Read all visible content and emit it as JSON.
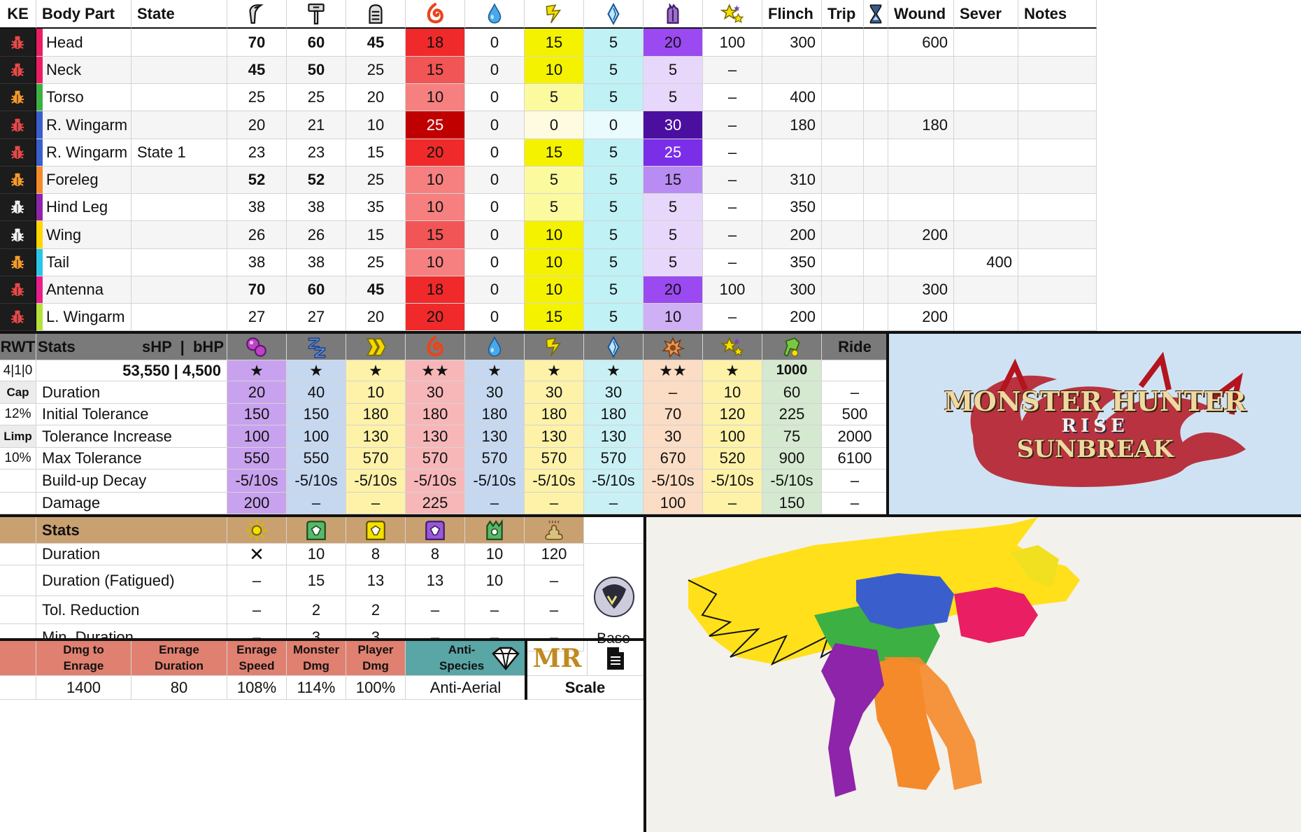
{
  "colors": {
    "ke_bg": "#1c1c1c",
    "stats_header": "#7a7a7a",
    "status_header": "#c9a070",
    "enrage_header": "#e08070",
    "anti_header": "#5aa5a5",
    "logo_bg": "#cfe2f3"
  },
  "hitzone": {
    "headers": {
      "ke": "KE",
      "body_part": "Body Part",
      "state": "State",
      "flinch": "Flinch",
      "trip": "Trip",
      "wound": "Wound",
      "sever": "Sever",
      "notes": "Notes"
    },
    "icons": [
      "sever-icon",
      "blunt-icon",
      "shot-icon",
      "fire-icon",
      "water-icon",
      "thunder-icon",
      "ice-icon",
      "dragon-icon",
      "stun-icon",
      "timer-icon"
    ],
    "rows": [
      {
        "bug": "red",
        "stripe": "#e91e63",
        "part": "Head",
        "state": "",
        "sev": "70",
        "blunt": "60",
        "shot": "45",
        "fire": "18",
        "water": "0",
        "thunder": "15",
        "ice": "5",
        "dragon": "20",
        "stun": "100",
        "flinch": "300",
        "wound": "600",
        "sever_v": "",
        "bs": 1,
        "bb": 1,
        "bsh": 1
      },
      {
        "bug": "red",
        "stripe": "#e91e63",
        "part": "Neck",
        "state": "",
        "sev": "45",
        "blunt": "50",
        "shot": "25",
        "fire": "15",
        "water": "0",
        "thunder": "10",
        "ice": "5",
        "dragon": "5",
        "stun": "–",
        "flinch": "",
        "wound": "",
        "sever_v": "",
        "bs": 1,
        "bb": 1,
        "bsh": 0
      },
      {
        "bug": "orange",
        "stripe": "#3cb043",
        "part": "Torso",
        "state": "",
        "sev": "25",
        "blunt": "25",
        "shot": "20",
        "fire": "10",
        "water": "0",
        "thunder": "5",
        "ice": "5",
        "dragon": "5",
        "stun": "–",
        "flinch": "400",
        "wound": "",
        "sever_v": "",
        "bs": 0,
        "bb": 0,
        "bsh": 0
      },
      {
        "bug": "red",
        "stripe": "#3a5fcd",
        "part": "R. Wingarm",
        "state": "",
        "sev": "20",
        "blunt": "21",
        "shot": "10",
        "fire": "25",
        "water": "0",
        "thunder": "0",
        "ice": "0",
        "dragon": "30",
        "stun": "–",
        "flinch": "180",
        "wound": "180",
        "sever_v": "",
        "bs": 0,
        "bb": 0,
        "bsh": 0
      },
      {
        "bug": "red",
        "stripe": "#3a5fcd",
        "part": "R. Wingarm",
        "state": "State 1",
        "sev": "23",
        "blunt": "23",
        "shot": "15",
        "fire": "20",
        "water": "0",
        "thunder": "15",
        "ice": "5",
        "dragon": "25",
        "stun": "–",
        "flinch": "",
        "wound": "",
        "sever_v": "",
        "bs": 0,
        "bb": 0,
        "bsh": 0
      },
      {
        "bug": "orange",
        "stripe": "#f58a2a",
        "part": "Foreleg",
        "state": "",
        "sev": "52",
        "blunt": "52",
        "shot": "25",
        "fire": "10",
        "water": "0",
        "thunder": "5",
        "ice": "5",
        "dragon": "15",
        "stun": "–",
        "flinch": "310",
        "wound": "",
        "sever_v": "",
        "bs": 1,
        "bb": 1,
        "bsh": 0
      },
      {
        "bug": "white",
        "stripe": "#8e24aa",
        "part": "Hind Leg",
        "state": "",
        "sev": "38",
        "blunt": "38",
        "shot": "35",
        "fire": "10",
        "water": "0",
        "thunder": "5",
        "ice": "5",
        "dragon": "5",
        "stun": "–",
        "flinch": "350",
        "wound": "",
        "sever_v": "",
        "bs": 0,
        "bb": 0,
        "bsh": 0
      },
      {
        "bug": "white",
        "stripe": "#ffd600",
        "part": "Wing",
        "state": "",
        "sev": "26",
        "blunt": "26",
        "shot": "15",
        "fire": "15",
        "water": "0",
        "thunder": "10",
        "ice": "5",
        "dragon": "5",
        "stun": "–",
        "flinch": "200",
        "wound": "200",
        "sever_v": "",
        "bs": 0,
        "bb": 0,
        "bsh": 0
      },
      {
        "bug": "orange",
        "stripe": "#29c6e8",
        "part": "Tail",
        "state": "",
        "sev": "38",
        "blunt": "38",
        "shot": "25",
        "fire": "10",
        "water": "0",
        "thunder": "10",
        "ice": "5",
        "dragon": "5",
        "stun": "–",
        "flinch": "350",
        "wound": "",
        "sever_v": "400",
        "bs": 0,
        "bb": 0,
        "bsh": 0
      },
      {
        "bug": "red",
        "stripe": "#e91e8c",
        "part": "Antenna",
        "state": "",
        "sev": "70",
        "blunt": "60",
        "shot": "45",
        "fire": "18",
        "water": "0",
        "thunder": "10",
        "ice": "5",
        "dragon": "20",
        "stun": "100",
        "flinch": "300",
        "wound": "300",
        "sever_v": "",
        "bs": 1,
        "bb": 1,
        "bsh": 1
      },
      {
        "bug": "red",
        "stripe": "#b4e03a",
        "part": "L. Wingarm",
        "state": "",
        "sev": "27",
        "blunt": "27",
        "shot": "20",
        "fire": "20",
        "water": "0",
        "thunder": "15",
        "ice": "5",
        "dragon": "10",
        "stun": "–",
        "flinch": "200",
        "wound": "200",
        "sever_v": "",
        "bs": 0,
        "bb": 0,
        "bsh": 0
      }
    ]
  },
  "ailments": {
    "header": {
      "rwt": "RWT",
      "stats": "Stats",
      "hp": "sHP  |  bHP",
      "ride": "Ride"
    },
    "icons": [
      "poison-icon",
      "sleep-icon",
      "paralysis-icon",
      "fireblight-icon",
      "waterblight-icon",
      "thunderblight-icon",
      "iceblight-icon",
      "blast-icon",
      "stun-icon",
      "exhaust-icon"
    ],
    "col_colors": [
      "#c8a2ee",
      "#c6d8f0",
      "#fdf2a8",
      "#f7b7b9",
      "#c6d8f0",
      "#fdf2a8",
      "#c9f0f5",
      "#fbdcc4",
      "#fdf2a8",
      "#d5e8d0",
      "#ffffff"
    ],
    "rwt_labels": [
      "4|1|0",
      "Cap",
      "12%",
      "Limp",
      "10%",
      "",
      ""
    ],
    "hp_row": {
      "hp": "53,550  |  4,500",
      "values": [
        "★",
        "★",
        "★",
        "★★",
        "★",
        "★",
        "★",
        "★★",
        "★",
        "1000",
        ""
      ]
    },
    "rows": [
      {
        "label": "Duration",
        "values": [
          "20",
          "40",
          "10",
          "30",
          "30",
          "30",
          "30",
          "–",
          "10",
          "60",
          "–"
        ]
      },
      {
        "label": "Initial Tolerance",
        "values": [
          "150",
          "150",
          "180",
          "180",
          "180",
          "180",
          "180",
          "70",
          "120",
          "225",
          "500"
        ]
      },
      {
        "label": "Tolerance Increase",
        "values": [
          "100",
          "100",
          "130",
          "130",
          "130",
          "130",
          "130",
          "30",
          "100",
          "75",
          "2000"
        ]
      },
      {
        "label": "Max Tolerance",
        "values": [
          "550",
          "550",
          "570",
          "570",
          "570",
          "570",
          "570",
          "670",
          "520",
          "900",
          "6100"
        ]
      },
      {
        "label": "Build-up Decay",
        "values": [
          "-5/10s",
          "-5/10s",
          "-5/10s",
          "-5/10s",
          "-5/10s",
          "-5/10s",
          "-5/10s",
          "-5/10s",
          "-5/10s",
          "-5/10s",
          "–"
        ]
      },
      {
        "label": "Damage",
        "values": [
          "200",
          "–",
          "–",
          "225",
          "–",
          "–",
          "–",
          "100",
          "–",
          "150",
          "–"
        ]
      }
    ]
  },
  "logo": {
    "line1": "MONSTER HUNTER",
    "line2": "RISE",
    "line3": "SUNBREAK"
  },
  "traps": {
    "header": "Stats",
    "icons": [
      "flash-bomb-icon",
      "shock-trap-icon",
      "pitfall-trap-icon",
      "dragon-trap-icon",
      "sonic-trap-icon",
      "dung-icon"
    ],
    "rows": [
      {
        "label": "Duration",
        "values": [
          "✕",
          "10",
          "8",
          "8",
          "10",
          "120"
        ],
        "side": ""
      },
      {
        "label": "Duration (Fatigued)",
        "values": [
          "–",
          "15",
          "13",
          "13",
          "10",
          "–"
        ],
        "side": ""
      },
      {
        "label": "Tol. Reduction",
        "values": [
          "–",
          "2",
          "2",
          "–",
          "–",
          "–"
        ],
        "side": ""
      },
      {
        "label": "Min. Duration",
        "values": [
          "–",
          "3",
          "3",
          "–",
          "–",
          "–"
        ],
        "side": "Base"
      }
    ]
  },
  "enrage": {
    "headers": [
      "Dmg to\nEnrage",
      "Enrage\nDuration",
      "Enrage\nSpeed",
      "Monster\nDmg",
      "Player\nDmg"
    ],
    "values": [
      "1400",
      "80",
      "108%",
      "114%",
      "100%"
    ],
    "anti_label": "Anti-\nSpecies",
    "anti_value": "Anti-Aerial",
    "rank": "MR",
    "scale_label": "Scale"
  }
}
